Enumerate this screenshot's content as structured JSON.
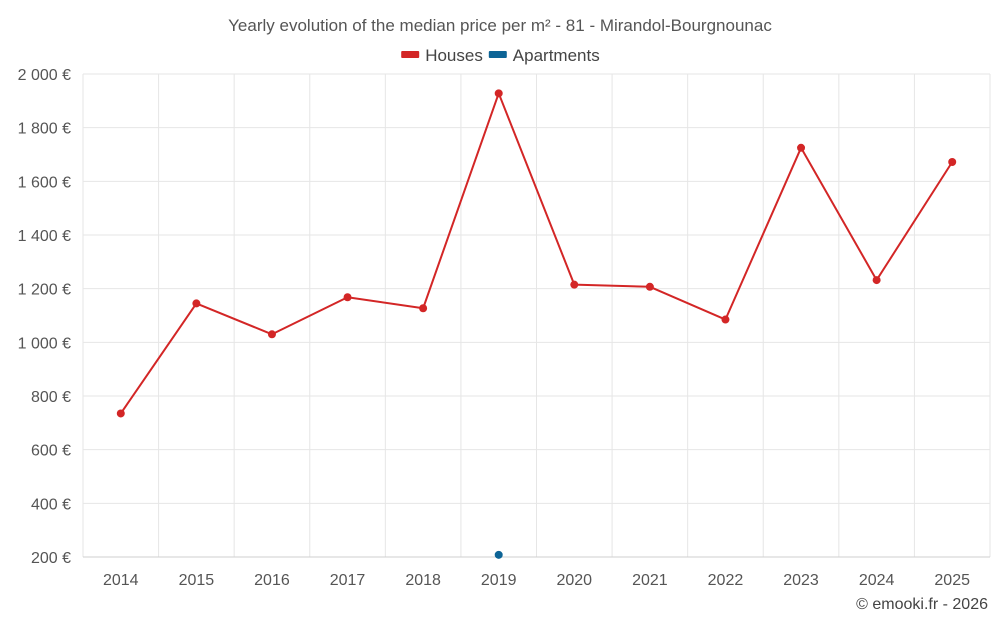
{
  "chart_data": {
    "type": "line",
    "title": "Yearly evolution of the median price per m² - 81 - Mirandol-Bourgnounac",
    "categories": [
      "2014",
      "2015",
      "2016",
      "2017",
      "2018",
      "2019",
      "2020",
      "2021",
      "2022",
      "2023",
      "2024",
      "2025"
    ],
    "series": [
      {
        "name": "Houses",
        "color": "#d32626",
        "values": [
          735,
          1145,
          1030,
          1168,
          1127,
          1928,
          1215,
          1207,
          1085,
          1725,
          1232,
          1672
        ]
      },
      {
        "name": "Apartments",
        "color": "#0d6496",
        "values": [
          null,
          null,
          null,
          null,
          null,
          208,
          null,
          null,
          null,
          null,
          null,
          null
        ]
      }
    ],
    "ylim": [
      200,
      2000
    ],
    "yticks": [
      200,
      400,
      600,
      800,
      1000,
      1200,
      1400,
      1600,
      1800,
      2000
    ],
    "ytick_labels": [
      "200 €",
      "400 €",
      "600 €",
      "800 €",
      "1 000 €",
      "1 200 €",
      "1 400 €",
      "1 600 €",
      "1 800 €",
      "2 000 €"
    ],
    "xlabel": "",
    "ylabel": "",
    "grid": true,
    "legend_position": "top-center"
  },
  "credit": "© emooki.fr - 2026"
}
